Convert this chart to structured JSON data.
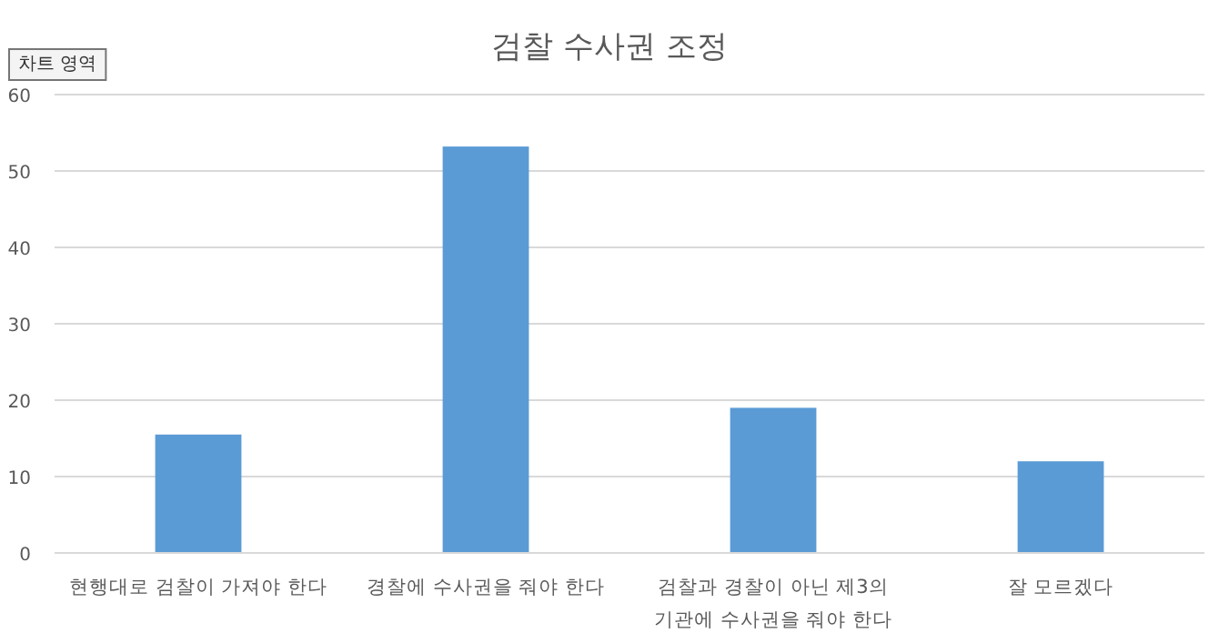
{
  "chart_data": {
    "type": "bar",
    "title": "검찰 수사권 조정",
    "categories": [
      "현행대로 검찰이 가져야 한다",
      "경찰에 수사권을 줘야 한다",
      "검찰과 경찰이 아닌 제3의 기관에 수사권을 줘야 한다",
      "잘 모르겠다"
    ],
    "values": [
      15.5,
      53.2,
      19,
      12
    ],
    "color": "#5b9bd5",
    "ylim": [
      0,
      60
    ],
    "yticks": [
      0,
      10,
      20,
      30,
      40,
      50,
      60
    ],
    "grid": "y",
    "annotations": [
      "차트 영역"
    ]
  }
}
